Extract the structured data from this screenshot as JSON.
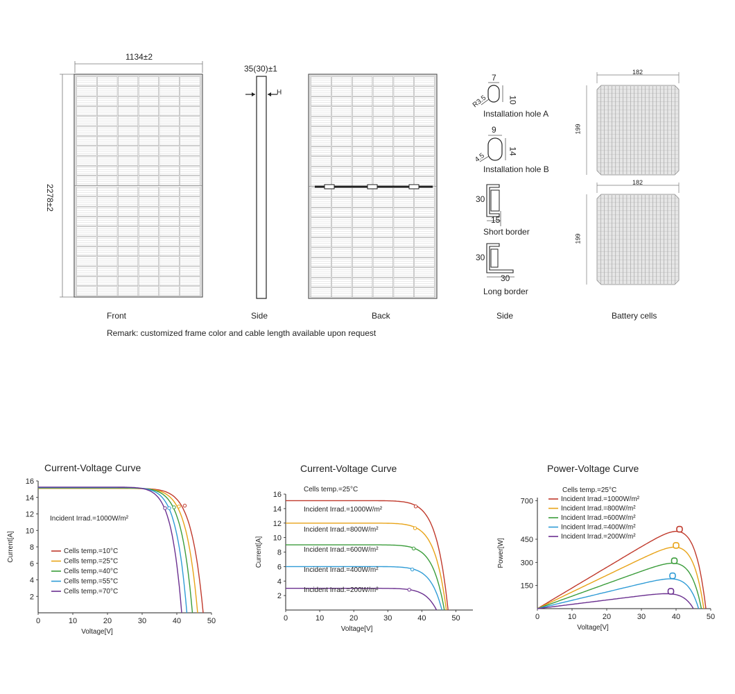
{
  "top": {
    "front": {
      "caption": "Front",
      "width_dim": "1134±2",
      "height_dim": "2278±2"
    },
    "side": {
      "caption": "Side",
      "thickness_dim": "35(30)±1",
      "h_label": "H"
    },
    "back": {
      "caption": "Back"
    },
    "frame": {
      "caption": "Side",
      "hole_a": {
        "label": "Installation hole A",
        "w": "7",
        "h": "10",
        "r": "R3.5"
      },
      "hole_b": {
        "label": "Installation hole B",
        "w": "9",
        "h": "14",
        "r": "4.5"
      },
      "short_border": {
        "label": "Short border",
        "h": "30",
        "w": "15"
      },
      "long_border": {
        "label": "Long border",
        "h": "30",
        "w": "30"
      }
    },
    "cells": {
      "caption": "Battery cells",
      "w1": "182",
      "h1": "199",
      "w2": "182",
      "h2": "199"
    },
    "remark": "Remark: customized frame color and cable length available upon request"
  },
  "chart_data": [
    {
      "type": "line",
      "title": "Current-Voltage Curve",
      "xlabel": "Voltage[V]",
      "ylabel": "Current[A]",
      "xlim": [
        0,
        50
      ],
      "ylim": [
        0,
        16
      ],
      "xticks": [
        "0",
        "10",
        "20",
        "30",
        "40",
        "50"
      ],
      "yticks": [
        "2",
        "4",
        "6",
        "8",
        "10",
        "12",
        "14",
        "16"
      ],
      "annotation": "Incident Irrad.=1000W/m²",
      "series": [
        {
          "name": "Cells temp.=10°C",
          "color": "#c0392b",
          "isc": 15.1,
          "voc": 47.6,
          "mpp": [
            42.3,
            13.0
          ]
        },
        {
          "name": "Cells temp.=25°C",
          "color": "#e8a317",
          "isc": 15.1,
          "voc": 46.0,
          "mpp": [
            40.6,
            12.9
          ]
        },
        {
          "name": "Cells temp.=40°C",
          "color": "#3a9c3a",
          "isc": 15.15,
          "voc": 44.5,
          "mpp": [
            39.2,
            12.8
          ]
        },
        {
          "name": "Cells temp.=55°C",
          "color": "#2e9bd6",
          "isc": 15.2,
          "voc": 42.9,
          "mpp": [
            37.8,
            12.7
          ]
        },
        {
          "name": "Cells temp.=70°C",
          "color": "#6a2f8f",
          "isc": 15.25,
          "voc": 41.4,
          "mpp": [
            36.6,
            12.7
          ]
        }
      ]
    },
    {
      "type": "line",
      "title": "Current-Voltage Curve",
      "xlabel": "Voltage[V]",
      "ylabel": "Current[A]",
      "xlim": [
        0,
        55
      ],
      "ylim": [
        0,
        16
      ],
      "xticks": [
        "0",
        "10",
        "20",
        "30",
        "40",
        "50"
      ],
      "yticks": [
        "2",
        "4",
        "6",
        "8",
        "10",
        "12",
        "14",
        "16"
      ],
      "annotation": "Cells temp.=25°C",
      "series": [
        {
          "name": "Incident Irrad.=1000W/m²",
          "color": "#c0392b",
          "isc": 15.1,
          "voc": 47.7,
          "mpp": [
            38.2,
            14.3
          ]
        },
        {
          "name": "Incident Irrad.=800W/m²",
          "color": "#e8a317",
          "isc": 12.0,
          "voc": 47.2,
          "mpp": [
            38.0,
            11.3
          ]
        },
        {
          "name": "Incident Irrad.=600W/m²",
          "color": "#3a9c3a",
          "isc": 9.0,
          "voc": 46.6,
          "mpp": [
            37.6,
            8.5
          ]
        },
        {
          "name": "Incident Irrad.=400W/m²",
          "color": "#2e9bd6",
          "isc": 6.0,
          "voc": 45.9,
          "mpp": [
            37.2,
            5.6
          ]
        },
        {
          "name": "Incident Irrad.=200W/m²",
          "color": "#6a2f8f",
          "isc": 3.0,
          "voc": 44.3,
          "mpp": [
            36.3,
            2.8
          ]
        }
      ]
    },
    {
      "type": "line",
      "title": "Power-Voltage Curve",
      "xlabel": "Voltage[V]",
      "ylabel": "Power[W]",
      "xlim": [
        0,
        50
      ],
      "ylim": [
        0,
        720
      ],
      "xticks": [
        "0",
        "10",
        "20",
        "30",
        "40",
        "50"
      ],
      "yticks": [
        "150",
        "300",
        "450",
        "700"
      ],
      "annotation": "Cells temp.=25°C",
      "series": [
        {
          "name": "Incident Irrad.=1000W/m²",
          "color": "#c0392b",
          "isc": 13.4,
          "voc": 48.6,
          "mpp": [
            41.0,
            515
          ]
        },
        {
          "name": "Incident Irrad.=800W/m²",
          "color": "#e8a317",
          "isc": 10.8,
          "voc": 48.0,
          "mpp": [
            40.0,
            410
          ]
        },
        {
          "name": "Incident Irrad.=600W/m²",
          "color": "#3a9c3a",
          "isc": 8.1,
          "voc": 47.3,
          "mpp": [
            39.5,
            310
          ]
        },
        {
          "name": "Incident Irrad.=400W/m²",
          "color": "#2e9bd6",
          "isc": 5.4,
          "voc": 46.5,
          "mpp": [
            39.0,
            213
          ]
        },
        {
          "name": "Incident Irrad.=200W/m²",
          "color": "#6a2f8f",
          "isc": 2.8,
          "voc": 45.0,
          "mpp": [
            38.5,
            112
          ]
        }
      ]
    }
  ]
}
